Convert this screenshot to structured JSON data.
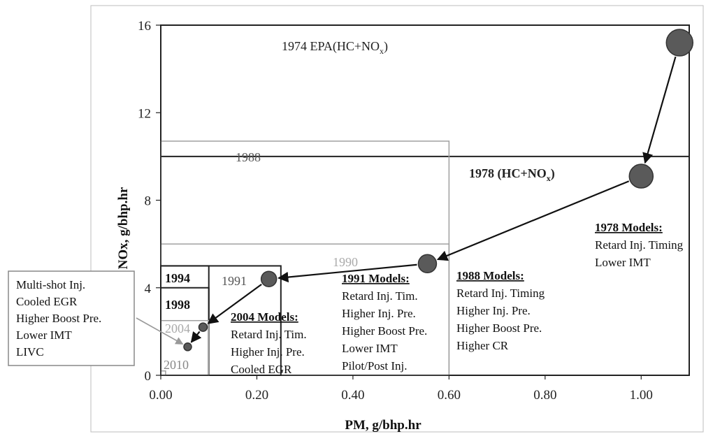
{
  "chart_data": {
    "type": "scatter",
    "xlabel": "PM, g/bhp.hr",
    "ylabel": "NOx, g/bhp.hr",
    "xlim": [
      0,
      1.1
    ],
    "ylim": [
      0,
      16
    ],
    "x_ticks": [
      "0.00",
      "0.20",
      "0.40",
      "0.60",
      "0.80",
      "1.00"
    ],
    "y_ticks": [
      "0",
      "4",
      "8",
      "12",
      "16"
    ],
    "grid": false,
    "colors": {
      "point": "#5a5a5a",
      "limit_dark": "#222222",
      "limit_light": "#a0a0a0"
    },
    "standards": [
      {
        "label": "1974 EPA(HC+NO",
        "subscript": "x",
        "suffix": ")",
        "pm": 1.1,
        "nox": 16,
        "shade": "dark"
      },
      {
        "label": "1978 (HC+NO",
        "subscript": "x",
        "suffix": ")",
        "pm": 1.1,
        "nox": 10,
        "shade": "dark"
      },
      {
        "label": "1988",
        "pm": 0.6,
        "nox": 10.7,
        "shade": "light"
      },
      {
        "label": "1990",
        "pm": 0.6,
        "nox": 6,
        "shade": "light"
      },
      {
        "label": "1991",
        "pm": 0.25,
        "nox": 5,
        "shade": "dark"
      },
      {
        "label": "1994",
        "pm": 0.1,
        "nox": 5,
        "shade": "dark"
      },
      {
        "label": "1998",
        "pm": 0.1,
        "nox": 4,
        "shade": "dark"
      },
      {
        "label": "2004",
        "pm": 0.1,
        "nox": 2.5,
        "shade": "light"
      },
      {
        "label": "2010",
        "pm": 0.01,
        "nox": 0.2,
        "shade": "light"
      }
    ],
    "points": [
      {
        "pm": 1.08,
        "nox": 15.2
      },
      {
        "pm": 1.0,
        "nox": 9.1
      },
      {
        "pm": 0.555,
        "nox": 5.1
      },
      {
        "pm": 0.225,
        "nox": 4.4
      },
      {
        "pm": 0.088,
        "nox": 2.2
      },
      {
        "pm": 0.056,
        "nox": 1.3
      }
    ],
    "annotations": [
      {
        "title": "1978 Models:",
        "lines": [
          "Retard Inj. Timing",
          "Lower IMT"
        ]
      },
      {
        "title": "1988 Models:",
        "lines": [
          "Retard Inj. Timing",
          "Higher Inj. Pre.",
          "Higher Boost Pre.",
          "Higher CR"
        ]
      },
      {
        "title": "1991 Models:",
        "lines": [
          "Retard  Inj. Tim.",
          "Higher Inj. Pre.",
          "Higher Boost Pre.",
          "Lower IMT",
          "Pilot/Post Inj."
        ]
      },
      {
        "title": "2004 Models:",
        "lines": [
          "Retard Inj. Tim.",
          "Higher Inj. Pre.",
          "Cooled EGR"
        ]
      },
      {
        "title": "",
        "lines": [
          "Multi-shot Inj.",
          "Cooled EGR",
          "Higher Boost Pre.",
          "Lower IMT",
          "LIVC"
        ]
      }
    ]
  }
}
